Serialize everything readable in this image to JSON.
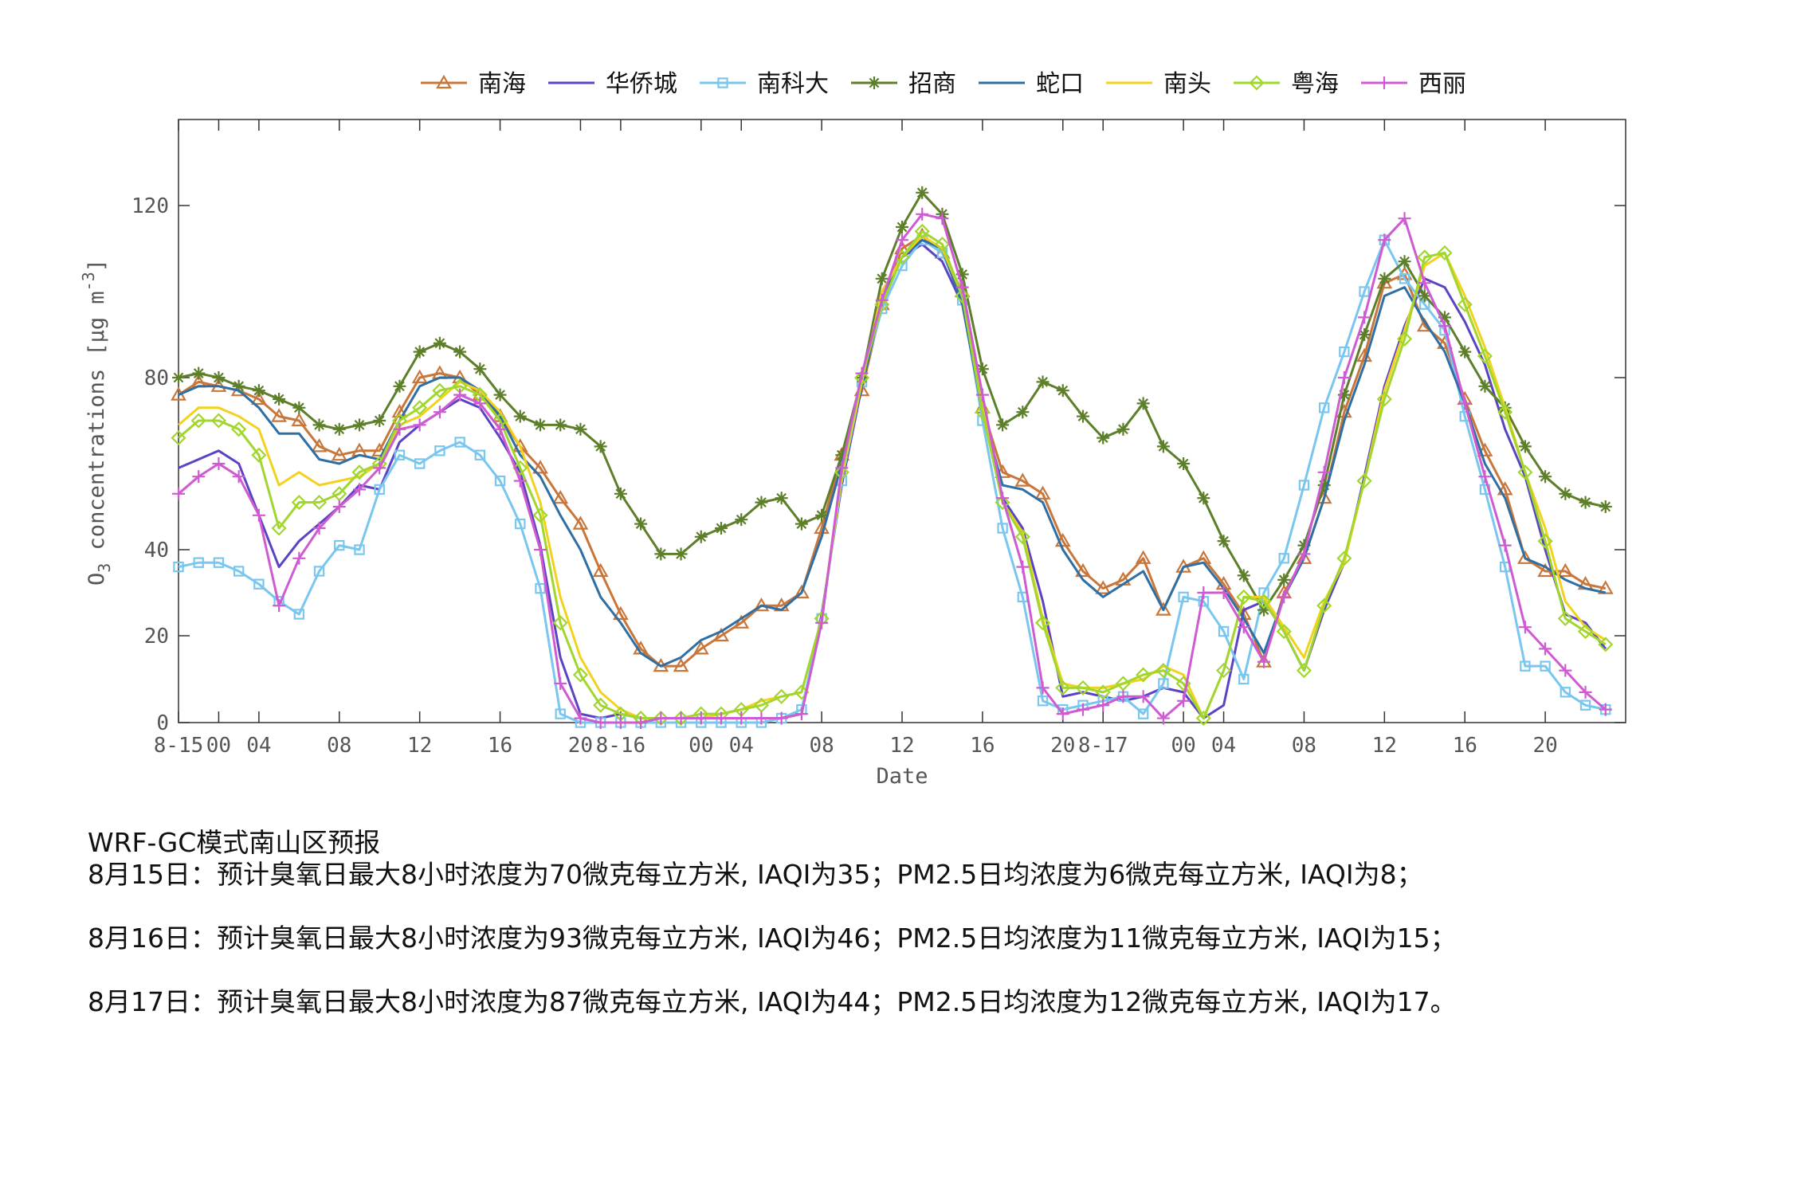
{
  "chart_data": {
    "type": "line",
    "xlabel": "Date",
    "ylabel": "O3 concentrations [μg m-3]",
    "ylim": [
      0,
      140
    ],
    "y_ticks": [
      0,
      20,
      40,
      80,
      120
    ],
    "x_range": [
      0,
      72
    ],
    "x_ticks": [
      {
        "x": 0,
        "label": "8-15"
      },
      {
        "x": 2,
        "label": "00"
      },
      {
        "x": 4,
        "label": "04"
      },
      {
        "x": 8,
        "label": "08"
      },
      {
        "x": 12,
        "label": "12"
      },
      {
        "x": 16,
        "label": "16"
      },
      {
        "x": 20,
        "label": "20"
      },
      {
        "x": 22,
        "label": "8-16"
      },
      {
        "x": 26,
        "label": "00"
      },
      {
        "x": 28,
        "label": "04"
      },
      {
        "x": 32,
        "label": "08"
      },
      {
        "x": 36,
        "label": "12"
      },
      {
        "x": 40,
        "label": "16"
      },
      {
        "x": 44,
        "label": "20"
      },
      {
        "x": 46,
        "label": "8-17"
      },
      {
        "x": 50,
        "label": "00"
      },
      {
        "x": 52,
        "label": "04"
      },
      {
        "x": 56,
        "label": "08"
      },
      {
        "x": 60,
        "label": "12"
      },
      {
        "x": 64,
        "label": "16"
      },
      {
        "x": 68,
        "label": "20"
      }
    ],
    "legend_position": "top",
    "grid": false,
    "series": [
      {
        "name": "南海",
        "color": "#c8763a",
        "marker": "triangle",
        "values": [
          76,
          79,
          78,
          77,
          75,
          71,
          70,
          64,
          62,
          63,
          63,
          72,
          80,
          81,
          80,
          76,
          71,
          64,
          59,
          52,
          46,
          35,
          25,
          17,
          13,
          13,
          17,
          20,
          23,
          27,
          27,
          30,
          45,
          62,
          77,
          97,
          110,
          113,
          109,
          100,
          73,
          58,
          56,
          53,
          42,
          35,
          31,
          33,
          38,
          26,
          36,
          38,
          32,
          25,
          14,
          30,
          38,
          52,
          72,
          85,
          102,
          104,
          92,
          88,
          75,
          63,
          54,
          38,
          35,
          35,
          32,
          31
        ]
      },
      {
        "name": "华侨城",
        "color": "#5b44c4",
        "marker": "none",
        "values": [
          59,
          61,
          63,
          60,
          48,
          36,
          42,
          46,
          50,
          55,
          54,
          65,
          69,
          72,
          75,
          73,
          66,
          58,
          41,
          15,
          2,
          1,
          2,
          1,
          1,
          1,
          1,
          1,
          1,
          1,
          1,
          2,
          25,
          55,
          78,
          100,
          108,
          111,
          107,
          97,
          72,
          52,
          45,
          28,
          6,
          7,
          6,
          5,
          6,
          8,
          7,
          1,
          4,
          26,
          28,
          21,
          12,
          26,
          37,
          57,
          78,
          92,
          103,
          101,
          93,
          83,
          68,
          57,
          40,
          25,
          23,
          17
        ]
      },
      {
        "name": "南科大",
        "color": "#79c6ee",
        "marker": "square",
        "values": [
          36,
          37,
          37,
          35,
          32,
          28,
          25,
          35,
          41,
          40,
          54,
          62,
          60,
          63,
          65,
          62,
          56,
          46,
          31,
          2,
          0,
          0,
          0,
          0,
          0,
          0,
          0,
          0,
          0,
          0,
          1,
          3,
          24,
          56,
          79,
          96,
          106,
          112,
          109,
          98,
          70,
          45,
          29,
          5,
          3,
          4,
          5,
          6,
          2,
          9,
          29,
          28,
          21,
          10,
          30,
          38,
          55,
          73,
          86,
          100,
          112,
          103,
          97,
          91,
          71,
          54,
          36,
          13,
          13,
          7,
          4,
          3
        ]
      },
      {
        "name": "招商",
        "color": "#5d7f2a",
        "marker": "asterisk",
        "values": [
          80,
          81,
          80,
          78,
          77,
          75,
          73,
          69,
          68,
          69,
          70,
          78,
          86,
          88,
          86,
          82,
          76,
          71,
          69,
          69,
          68,
          64,
          53,
          46,
          39,
          39,
          43,
          45,
          47,
          51,
          52,
          46,
          48,
          62,
          80,
          103,
          115,
          123,
          118,
          104,
          82,
          69,
          72,
          79,
          77,
          71,
          66,
          68,
          74,
          64,
          60,
          52,
          42,
          34,
          26,
          33,
          41,
          55,
          76,
          90,
          103,
          107,
          99,
          94,
          86,
          78,
          73,
          64,
          57,
          53,
          51,
          50
        ]
      },
      {
        "name": "蛇口",
        "color": "#2f6fa3",
        "marker": "none",
        "values": [
          76,
          78,
          78,
          77,
          73,
          67,
          67,
          61,
          60,
          62,
          61,
          70,
          78,
          80,
          80,
          77,
          71,
          62,
          57,
          48,
          40,
          29,
          23,
          16,
          13,
          15,
          19,
          21,
          24,
          27,
          26,
          30,
          43,
          60,
          78,
          98,
          108,
          112,
          110,
          97,
          72,
          55,
          54,
          51,
          40,
          33,
          29,
          32,
          35,
          26,
          36,
          37,
          31,
          24,
          16,
          29,
          38,
          52,
          70,
          83,
          99,
          101,
          93,
          86,
          74,
          60,
          52,
          38,
          36,
          33,
          31,
          30
        ]
      },
      {
        "name": "南头",
        "color": "#f2d21e",
        "marker": "none",
        "values": [
          69,
          73,
          73,
          71,
          68,
          55,
          58,
          55,
          56,
          57,
          60,
          69,
          71,
          75,
          79,
          77,
          72,
          64,
          51,
          29,
          15,
          7,
          3,
          1,
          1,
          1,
          1,
          2,
          3,
          5,
          6,
          7,
          24,
          57,
          79,
          100,
          108,
          113,
          110,
          99,
          73,
          51,
          44,
          24,
          9,
          8,
          8,
          9,
          10,
          13,
          11,
          1,
          12,
          29,
          29,
          22,
          15,
          28,
          37,
          56,
          77,
          91,
          106,
          109,
          99,
          87,
          73,
          58,
          45,
          28,
          22,
          19
        ]
      },
      {
        "name": "粤海",
        "color": "#a0d62e",
        "marker": "diamond",
        "values": [
          66,
          70,
          70,
          68,
          62,
          45,
          51,
          51,
          53,
          58,
          60,
          70,
          73,
          77,
          78,
          76,
          70,
          59,
          48,
          23,
          11,
          4,
          2,
          1,
          1,
          1,
          2,
          2,
          3,
          4,
          6,
          7,
          24,
          58,
          80,
          97,
          108,
          114,
          111,
          99,
          72,
          51,
          43,
          23,
          8,
          8,
          7,
          9,
          11,
          12,
          9,
          1,
          12,
          29,
          28,
          21,
          12,
          27,
          38,
          56,
          75,
          89,
          108,
          109,
          97,
          85,
          72,
          58,
          42,
          24,
          21,
          18
        ]
      },
      {
        "name": "西丽",
        "color": "#cf5bd3",
        "marker": "plus",
        "values": [
          53,
          57,
          60,
          57,
          48,
          27,
          38,
          45,
          50,
          54,
          59,
          68,
          69,
          72,
          76,
          74,
          68,
          56,
          40,
          9,
          1,
          0,
          0,
          0,
          1,
          1,
          1,
          1,
          1,
          1,
          1,
          2,
          23,
          59,
          81,
          98,
          112,
          118,
          117,
          101,
          76,
          52,
          36,
          8,
          2,
          3,
          4,
          6,
          6,
          1,
          5,
          30,
          30,
          22,
          14,
          29,
          39,
          58,
          80,
          94,
          112,
          117,
          102,
          92,
          74,
          57,
          41,
          22,
          17,
          12,
          7,
          3
        ]
      }
    ]
  },
  "notes": {
    "title": "WRF-GC模式南山区预报",
    "lines": [
      "8月15日：预计臭氧日最大8小时浓度为70微克每立方米, IAQI为35；PM2.5日均浓度为6微克每立方米, IAQI为8；",
      "8月16日：预计臭氧日最大8小时浓度为93微克每立方米, IAQI为46；PM2.5日均浓度为11微克每立方米, IAQI为15；",
      "8月17日：预计臭氧日最大8小时浓度为87微克每立方米, IAQI为44；PM2.5日均浓度为12微克每立方米, IAQI为17。"
    ]
  }
}
